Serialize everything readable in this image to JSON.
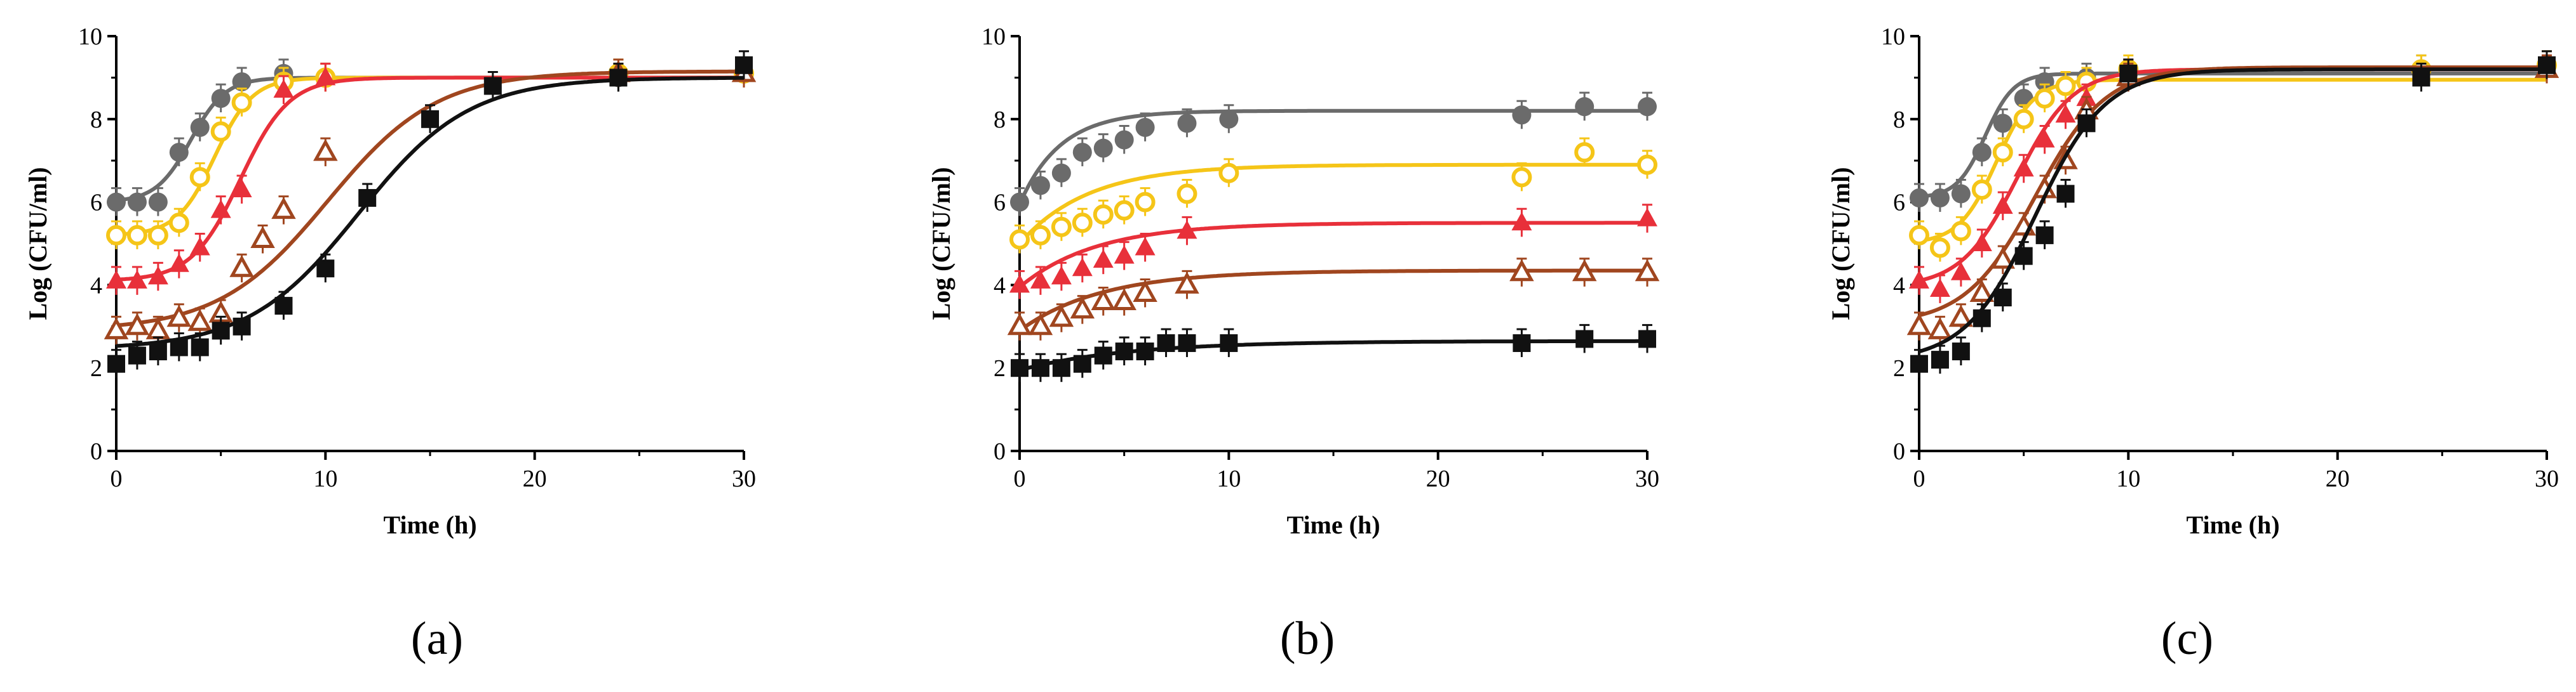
{
  "panels": {
    "a": {
      "label": "(a)"
    },
    "b": {
      "label": "(b)"
    },
    "c": {
      "label": "(c)"
    }
  },
  "chart_data": [
    {
      "id": "a",
      "type": "scatter",
      "xlabel": "Time (h)",
      "ylabel": "Log (CFU/ml)",
      "xlim": [
        0,
        30
      ],
      "ylim": [
        0,
        10
      ],
      "xticks": [
        0,
        10,
        20,
        30
      ],
      "yticks": [
        0,
        2,
        4,
        6,
        8,
        10
      ],
      "grid": false,
      "series": [
        {
          "marker": "circle-filled",
          "color": "#6b6b6b",
          "points": [
            [
              0,
              6.0
            ],
            [
              1,
              6.0
            ],
            [
              2,
              6.0
            ],
            [
              3,
              7.2
            ],
            [
              4,
              7.8
            ],
            [
              5,
              8.5
            ],
            [
              6,
              8.9
            ],
            [
              8,
              9.1
            ],
            [
              10,
              9.0
            ],
            [
              24,
              9.0
            ],
            [
              30,
              9.1
            ]
          ],
          "fit": {
            "y0": 6.0,
            "ymax": 9.0,
            "mu": 0.9,
            "lag": 1.9
          }
        },
        {
          "marker": "circle-open",
          "color": "#f5c518",
          "points": [
            [
              0,
              5.2
            ],
            [
              1,
              5.2
            ],
            [
              2,
              5.2
            ],
            [
              3,
              5.5
            ],
            [
              4,
              6.6
            ],
            [
              5,
              7.7
            ],
            [
              6,
              8.4
            ],
            [
              8,
              8.9
            ],
            [
              10,
              9.0
            ],
            [
              24,
              9.1
            ],
            [
              30,
              9.1
            ]
          ],
          "fit": {
            "y0": 5.2,
            "ymax": 9.0,
            "mu": 1.05,
            "lag": 2.9
          }
        },
        {
          "marker": "triangle-filled",
          "color": "#e8303a",
          "points": [
            [
              0,
              4.1
            ],
            [
              1,
              4.1
            ],
            [
              2,
              4.2
            ],
            [
              3,
              4.5
            ],
            [
              4,
              4.9
            ],
            [
              5,
              5.8
            ],
            [
              6,
              6.3
            ],
            [
              8,
              8.7
            ],
            [
              10,
              9.0
            ],
            [
              30,
              9.1
            ]
          ],
          "fit": {
            "y0": 4.1,
            "ymax": 9.0,
            "mu": 1.05,
            "lag": 3.6
          }
        },
        {
          "marker": "triangle-open",
          "color": "#a0461f",
          "points": [
            [
              0,
              2.9
            ],
            [
              1,
              3.0
            ],
            [
              2,
              2.9
            ],
            [
              3,
              3.2
            ],
            [
              4,
              3.1
            ],
            [
              5,
              3.3
            ],
            [
              6,
              4.4
            ],
            [
              7,
              5.1
            ],
            [
              8,
              5.8
            ],
            [
              10,
              7.2
            ],
            [
              24,
              9.1
            ],
            [
              30,
              9.1
            ]
          ],
          "fit": {
            "y0": 2.9,
            "ymax": 9.15,
            "mu": 0.6,
            "lag": 4.9
          }
        },
        {
          "marker": "square-filled",
          "color": "#111111",
          "points": [
            [
              0,
              2.1
            ],
            [
              1,
              2.3
            ],
            [
              2,
              2.4
            ],
            [
              3,
              2.5
            ],
            [
              4,
              2.5
            ],
            [
              5,
              2.9
            ],
            [
              6,
              3.0
            ],
            [
              8,
              3.5
            ],
            [
              10,
              4.4
            ],
            [
              12,
              6.1
            ],
            [
              15,
              8.0
            ],
            [
              18,
              8.8
            ],
            [
              24,
              9.0
            ],
            [
              30,
              9.3
            ]
          ],
          "fit": {
            "y0": 2.45,
            "ymax": 9.0,
            "mu": 0.62,
            "lag": 6.3
          }
        }
      ]
    },
    {
      "id": "b",
      "type": "scatter",
      "xlabel": "Time (h)",
      "ylabel": "Log (CFU/ml)",
      "xlim": [
        0,
        30
      ],
      "ylim": [
        0,
        10
      ],
      "xticks": [
        0,
        10,
        20,
        30
      ],
      "yticks": [
        0,
        2,
        4,
        6,
        8,
        10
      ],
      "grid": false,
      "series": [
        {
          "marker": "circle-filled",
          "color": "#6b6b6b",
          "points": [
            [
              0,
              6.0
            ],
            [
              1,
              6.4
            ],
            [
              2,
              6.7
            ],
            [
              3,
              7.2
            ],
            [
              4,
              7.3
            ],
            [
              5,
              7.5
            ],
            [
              6,
              7.8
            ],
            [
              8,
              7.9
            ],
            [
              10,
              8.0
            ],
            [
              24,
              8.1
            ],
            [
              27,
              8.3
            ],
            [
              30,
              8.3
            ]
          ],
          "fit": {
            "y0": 5.95,
            "ymax": 8.2,
            "mu": 0.32,
            "lag": 0
          }
        },
        {
          "marker": "circle-open",
          "color": "#f5c518",
          "points": [
            [
              0,
              5.1
            ],
            [
              1,
              5.2
            ],
            [
              2,
              5.4
            ],
            [
              3,
              5.5
            ],
            [
              4,
              5.7
            ],
            [
              5,
              5.8
            ],
            [
              6,
              6.0
            ],
            [
              8,
              6.2
            ],
            [
              10,
              6.7
            ],
            [
              24,
              6.6
            ],
            [
              27,
              7.2
            ],
            [
              30,
              6.9
            ]
          ],
          "fit": {
            "y0": 5.0,
            "ymax": 6.9,
            "mu": 0.19,
            "lag": 0
          }
        },
        {
          "marker": "triangle-filled",
          "color": "#e8303a",
          "points": [
            [
              0,
              4.0
            ],
            [
              1,
              4.1
            ],
            [
              2,
              4.2
            ],
            [
              3,
              4.4
            ],
            [
              4,
              4.6
            ],
            [
              5,
              4.7
            ],
            [
              6,
              4.9
            ],
            [
              8,
              5.3
            ],
            [
              24,
              5.5
            ],
            [
              30,
              5.6
            ]
          ],
          "fit": {
            "y0": 3.95,
            "ymax": 5.5,
            "mu": 0.17,
            "lag": 0
          }
        },
        {
          "marker": "triangle-open",
          "color": "#a0461f",
          "points": [
            [
              0,
              3.0
            ],
            [
              1,
              3.0
            ],
            [
              2,
              3.2
            ],
            [
              3,
              3.4
            ],
            [
              4,
              3.6
            ],
            [
              5,
              3.6
            ],
            [
              6,
              3.8
            ],
            [
              8,
              4.0
            ],
            [
              24,
              4.3
            ],
            [
              27,
              4.3
            ],
            [
              30,
              4.3
            ]
          ],
          "fit": {
            "y0": 2.9,
            "ymax": 4.35,
            "mu": 0.16,
            "lag": 0
          }
        },
        {
          "marker": "square-filled",
          "color": "#111111",
          "points": [
            [
              0,
              2.0
            ],
            [
              1,
              2.0
            ],
            [
              2,
              2.0
            ],
            [
              3,
              2.1
            ],
            [
              4,
              2.3
            ],
            [
              5,
              2.4
            ],
            [
              6,
              2.4
            ],
            [
              7,
              2.6
            ],
            [
              8,
              2.6
            ],
            [
              10,
              2.6
            ],
            [
              24,
              2.6
            ],
            [
              27,
              2.7
            ],
            [
              30,
              2.7
            ]
          ],
          "fit": {
            "y0": 1.95,
            "ymax": 2.65,
            "mu": 0.12,
            "lag": 0
          }
        }
      ]
    },
    {
      "id": "c",
      "type": "scatter",
      "xlabel": "Time (h)",
      "ylabel": "Log (CFU/ml)",
      "xlim": [
        0,
        30
      ],
      "ylim": [
        0,
        10
      ],
      "xticks": [
        0,
        10,
        20,
        30
      ],
      "yticks": [
        0,
        2,
        4,
        6,
        8,
        10
      ],
      "grid": false,
      "series": [
        {
          "marker": "circle-filled",
          "color": "#6b6b6b",
          "points": [
            [
              0,
              6.1
            ],
            [
              1,
              6.1
            ],
            [
              2,
              6.2
            ],
            [
              3,
              7.2
            ],
            [
              4,
              7.9
            ],
            [
              5,
              8.5
            ],
            [
              6,
              8.9
            ],
            [
              8,
              9.0
            ],
            [
              10,
              9.1
            ],
            [
              24,
              9.2
            ],
            [
              30,
              9.3
            ]
          ],
          "fit": {
            "y0": 6.1,
            "ymax": 9.1,
            "mu": 1.1,
            "lag": 1.8
          }
        },
        {
          "marker": "circle-open",
          "color": "#f5c518",
          "points": [
            [
              0,
              5.2
            ],
            [
              1,
              4.9
            ],
            [
              2,
              5.3
            ],
            [
              3,
              6.3
            ],
            [
              4,
              7.2
            ],
            [
              5,
              8.0
            ],
            [
              6,
              8.5
            ],
            [
              7,
              8.8
            ],
            [
              8,
              8.9
            ],
            [
              10,
              9.2
            ],
            [
              24,
              9.2
            ],
            [
              30,
              9.3
            ]
          ],
          "fit": {
            "y0": 5.0,
            "ymax": 8.95,
            "mu": 1.1,
            "lag": 1.9
          }
        },
        {
          "marker": "triangle-filled",
          "color": "#e8303a",
          "points": [
            [
              0,
              4.1
            ],
            [
              1,
              3.9
            ],
            [
              2,
              4.3
            ],
            [
              3,
              5.0
            ],
            [
              4,
              5.9
            ],
            [
              5,
              6.8
            ],
            [
              6,
              7.5
            ],
            [
              7,
              8.1
            ],
            [
              8,
              8.5
            ],
            [
              10,
              9.1
            ],
            [
              30,
              9.2
            ]
          ],
          "fit": {
            "y0": 3.95,
            "ymax": 9.2,
            "mu": 0.98,
            "lag": 2.0
          }
        },
        {
          "marker": "triangle-open",
          "color": "#a0461f",
          "points": [
            [
              0,
              3.0
            ],
            [
              1,
              2.9
            ],
            [
              2,
              3.2
            ],
            [
              3,
              3.8
            ],
            [
              4,
              4.6
            ],
            [
              5,
              5.4
            ],
            [
              6,
              6.3
            ],
            [
              7,
              7.0
            ],
            [
              8,
              8.2
            ],
            [
              10,
              9.0
            ],
            [
              30,
              9.2
            ]
          ],
          "fit": {
            "y0": 3.05,
            "ymax": 9.25,
            "mu": 0.92,
            "lag": 2.2
          }
        },
        {
          "marker": "square-filled",
          "color": "#111111",
          "points": [
            [
              0,
              2.1
            ],
            [
              1,
              2.2
            ],
            [
              2,
              2.4
            ],
            [
              3,
              3.2
            ],
            [
              4,
              3.7
            ],
            [
              5,
              4.7
            ],
            [
              6,
              5.2
            ],
            [
              7,
              6.2
            ],
            [
              8,
              7.9
            ],
            [
              10,
              9.1
            ],
            [
              24,
              9.0
            ],
            [
              30,
              9.3
            ]
          ],
          "fit": {
            "y0": 2.15,
            "ymax": 9.2,
            "mu": 1.05,
            "lag": 2.2
          }
        }
      ]
    }
  ]
}
